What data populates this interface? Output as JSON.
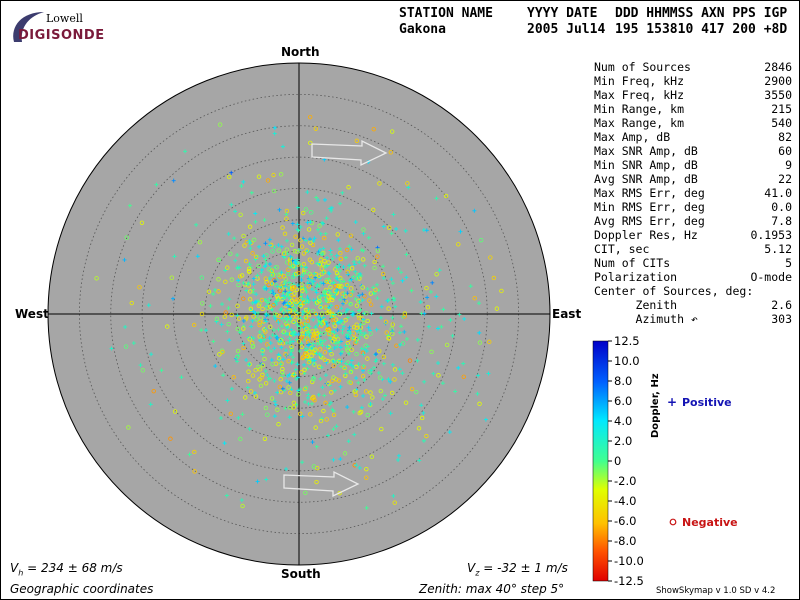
{
  "logo": {
    "line1": "Lowell",
    "line2": "DIGISONDE"
  },
  "header": {
    "labels": [
      "STATION NAME",
      "YYYY DATE",
      "DDD HHMMSS AXN PPS IGP"
    ],
    "values": [
      "Gakona",
      "2005 Jul14",
      "195 153810 417 200 +8D"
    ]
  },
  "stats": [
    {
      "label": "Num of Sources",
      "value": "2846"
    },
    {
      "label": "Min Freq, kHz",
      "value": "2900"
    },
    {
      "label": "Max Freq, kHz",
      "value": "3550"
    },
    {
      "label": "Min Range, km",
      "value": "215"
    },
    {
      "label": "Max Range, km",
      "value": "540"
    },
    {
      "label": "Max Amp, dB",
      "value": "82"
    },
    {
      "label": "Max SNR Amp, dB",
      "value": "60"
    },
    {
      "label": "Min SNR Amp, dB",
      "value": "9"
    },
    {
      "label": "Avg SNR Amp, dB",
      "value": "22"
    },
    {
      "label": "Max RMS Err, deg",
      "value": "41.0"
    },
    {
      "label": "Min RMS Err, deg",
      "value": "0.0"
    },
    {
      "label": "Avg RMS Err, deg",
      "value": "7.8"
    },
    {
      "label": "Doppler Res, Hz",
      "value": "0.1953"
    },
    {
      "label": "CIT, sec",
      "value": "5.12"
    },
    {
      "label": "Num of CITs",
      "value": "5"
    },
    {
      "label": "Polarization",
      "value": "O-mode"
    },
    {
      "label": "Center of Sources, deg:",
      "value": ""
    },
    {
      "label": "      Zenith",
      "value": "2.6"
    },
    {
      "label": "      Azimuth ↶",
      "value": "303"
    }
  ],
  "chart_data": {
    "type": "scatter",
    "projection": "polar",
    "directions": {
      "north": "North",
      "south": "South",
      "east": "East",
      "west": "West"
    },
    "zenith_max_deg": 40,
    "zenith_step_deg": 5,
    "grid": true,
    "source_count": 2846,
    "center_of_sources": {
      "zenith_deg": 2.6,
      "azimuth_deg": 303
    },
    "doppler_colorbar": {
      "label": "Doppler, Hz",
      "range": [
        -12.5,
        12.5
      ],
      "ticks": [
        "12.5",
        "10.0",
        "8.0",
        "6.0",
        "4.0",
        "2.0",
        "0",
        "-2.0",
        "-4.0",
        "-6.0",
        "-8.0",
        "-10.0",
        "-12.5"
      ]
    },
    "legend": [
      {
        "symbol": "+",
        "name": "Positive",
        "color": "#1414b4"
      },
      {
        "symbol": "o",
        "name": "Negative",
        "color": "#c81414"
      }
    ],
    "velocity_h": {
      "value": 234,
      "error": 68,
      "unit": "m/s"
    },
    "velocity_z": {
      "value": -32,
      "error": 1,
      "unit": "m/s"
    },
    "drift_arrows": [
      {
        "at_deg": "upper",
        "direction": "east"
      },
      {
        "at_deg": "lower",
        "direction": "east"
      }
    ]
  },
  "footer": {
    "vh": "= 234 ± 68 m/s",
    "vz": "= -32 ± 1 m/s",
    "coords": "Geographic coordinates",
    "zenith": "Zenith: max 40°  step 5°",
    "version": "ShowSkymap v 1.0   SD v 4.2"
  },
  "colors": {
    "disk": "#a6a6a6",
    "grid": "#555555"
  }
}
